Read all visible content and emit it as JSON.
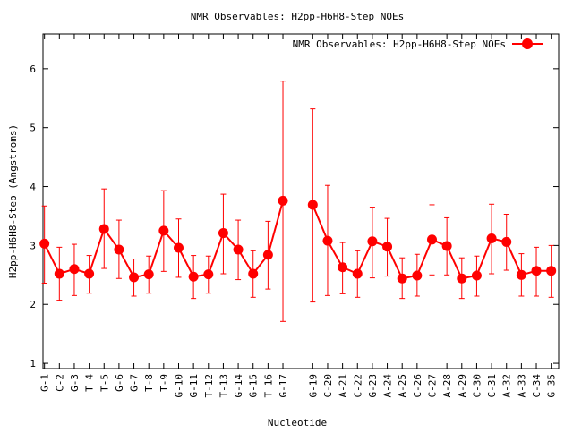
{
  "chart_data": {
    "type": "line",
    "title": "NMR Observables: H2pp-H6H8-Step NOEs",
    "xlabel": "Nucleotide",
    "ylabel": "H2pp-H6H8-Step (Angstroms)",
    "ylim": [
      0.91,
      6.59
    ],
    "xlim": [
      0.9,
      35.5
    ],
    "yticks": [
      1,
      2,
      3,
      4,
      5,
      6
    ],
    "grid": false,
    "legend": {
      "position": "top-right",
      "entries": [
        "NMR Observables: H2pp-H6H8-Step NOEs"
      ]
    },
    "color": "#ff0000",
    "series": [
      {
        "name": "NMR Observables: H2pp-H6H8-Step NOEs",
        "points": [
          {
            "x": 1,
            "label": "G-1",
            "y": 3.03,
            "lo": 2.36,
            "hi": 3.67
          },
          {
            "x": 2,
            "label": "C-2",
            "y": 2.52,
            "lo": 2.07,
            "hi": 2.97
          },
          {
            "x": 3,
            "label": "G-3",
            "y": 2.6,
            "lo": 2.15,
            "hi": 3.02
          },
          {
            "x": 4,
            "label": "T-4",
            "y": 2.52,
            "lo": 2.19,
            "hi": 2.83
          },
          {
            "x": 5,
            "label": "T-5",
            "y": 3.28,
            "lo": 2.61,
            "hi": 3.96
          },
          {
            "x": 6,
            "label": "G-6",
            "y": 2.93,
            "lo": 2.44,
            "hi": 3.43
          },
          {
            "x": 7,
            "label": "G-7",
            "y": 2.46,
            "lo": 2.14,
            "hi": 2.77
          },
          {
            "x": 8,
            "label": "T-8",
            "y": 2.51,
            "lo": 2.19,
            "hi": 2.82
          },
          {
            "x": 9,
            "label": "T-9",
            "y": 3.25,
            "lo": 2.56,
            "hi": 3.93
          },
          {
            "x": 10,
            "label": "G-10",
            "y": 2.96,
            "lo": 2.46,
            "hi": 3.45
          },
          {
            "x": 11,
            "label": "G-11",
            "y": 2.47,
            "lo": 2.1,
            "hi": 2.83
          },
          {
            "x": 12,
            "label": "T-12",
            "y": 2.51,
            "lo": 2.19,
            "hi": 2.82
          },
          {
            "x": 13,
            "label": "T-13",
            "y": 3.21,
            "lo": 2.52,
            "hi": 3.87
          },
          {
            "x": 14,
            "label": "G-14",
            "y": 2.93,
            "lo": 2.42,
            "hi": 3.43
          },
          {
            "x": 15,
            "label": "G-15",
            "y": 2.52,
            "lo": 2.12,
            "hi": 2.91
          },
          {
            "x": 16,
            "label": "T-16",
            "y": 2.84,
            "lo": 2.26,
            "hi": 3.41
          },
          {
            "x": 17,
            "label": "G-17",
            "y": 3.76,
            "lo": 1.71,
            "hi": 5.79
          },
          {
            "x": 19,
            "label": "G-19",
            "y": 3.69,
            "lo": 2.04,
            "hi": 5.32
          },
          {
            "x": 20,
            "label": "C-20",
            "y": 3.08,
            "lo": 2.15,
            "hi": 4.02
          },
          {
            "x": 21,
            "label": "A-21",
            "y": 2.63,
            "lo": 2.18,
            "hi": 3.05
          },
          {
            "x": 22,
            "label": "C-22",
            "y": 2.52,
            "lo": 2.12,
            "hi": 2.91
          },
          {
            "x": 23,
            "label": "G-23",
            "y": 3.07,
            "lo": 2.45,
            "hi": 3.65
          },
          {
            "x": 24,
            "label": "A-24",
            "y": 2.98,
            "lo": 2.48,
            "hi": 3.46
          },
          {
            "x": 25,
            "label": "A-25",
            "y": 2.44,
            "lo": 2.1,
            "hi": 2.79
          },
          {
            "x": 26,
            "label": "C-26",
            "y": 2.49,
            "lo": 2.14,
            "hi": 2.85
          },
          {
            "x": 27,
            "label": "C-27",
            "y": 3.1,
            "lo": 2.5,
            "hi": 3.69
          },
          {
            "x": 28,
            "label": "A-28",
            "y": 2.99,
            "lo": 2.5,
            "hi": 3.47
          },
          {
            "x": 29,
            "label": "A-29",
            "y": 2.44,
            "lo": 2.1,
            "hi": 2.79
          },
          {
            "x": 30,
            "label": "C-30",
            "y": 2.49,
            "lo": 2.14,
            "hi": 2.82
          },
          {
            "x": 31,
            "label": "C-31",
            "y": 3.12,
            "lo": 2.52,
            "hi": 3.7
          },
          {
            "x": 32,
            "label": "A-32",
            "y": 3.06,
            "lo": 2.58,
            "hi": 3.53
          },
          {
            "x": 33,
            "label": "A-33",
            "y": 2.5,
            "lo": 2.14,
            "hi": 2.86
          },
          {
            "x": 34,
            "label": "C-34",
            "y": 2.57,
            "lo": 2.14,
            "hi": 2.97
          },
          {
            "x": 35,
            "label": "G-35",
            "y": 2.57,
            "lo": 2.12,
            "hi": 3.0
          }
        ]
      }
    ]
  }
}
